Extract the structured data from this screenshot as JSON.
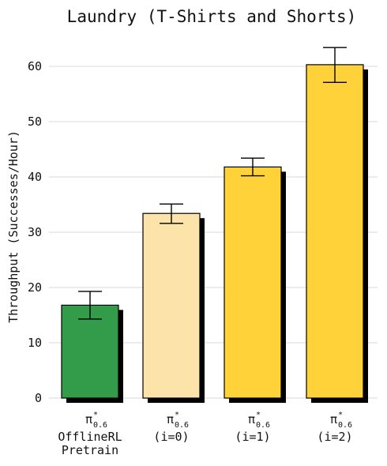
{
  "chart_data": {
    "type": "bar",
    "title": "Laundry (T-Shirts and Shorts)",
    "ylabel": "Throughput (Successes/Hour)",
    "xlabel": "",
    "ylim": [
      0,
      65
    ],
    "yticks": [
      0,
      10,
      20,
      30,
      40,
      50,
      60
    ],
    "grid": true,
    "categories": [
      {
        "symbol": "π",
        "sup": "*",
        "sub": "0.6",
        "lines": [
          "OfflineRL",
          "Pretrain"
        ]
      },
      {
        "symbol": "π",
        "sup": "*",
        "sub": "0.6",
        "lines": [
          "(i=0)"
        ]
      },
      {
        "symbol": "π",
        "sup": "*",
        "sub": "0.6",
        "lines": [
          "(i=1)"
        ]
      },
      {
        "symbol": "π",
        "sup": "*",
        "sub": "0.6",
        "lines": [
          "(i=2)"
        ]
      }
    ],
    "values": [
      16.8,
      33.4,
      41.8,
      60.3
    ],
    "error_low": [
      14.3,
      31.6,
      40.2,
      57.1
    ],
    "error_high": [
      19.3,
      35.1,
      43.4,
      63.4
    ],
    "colors": [
      "#339c4a",
      "#fbe3a9",
      "#ffd23a",
      "#ffd23a"
    ]
  }
}
